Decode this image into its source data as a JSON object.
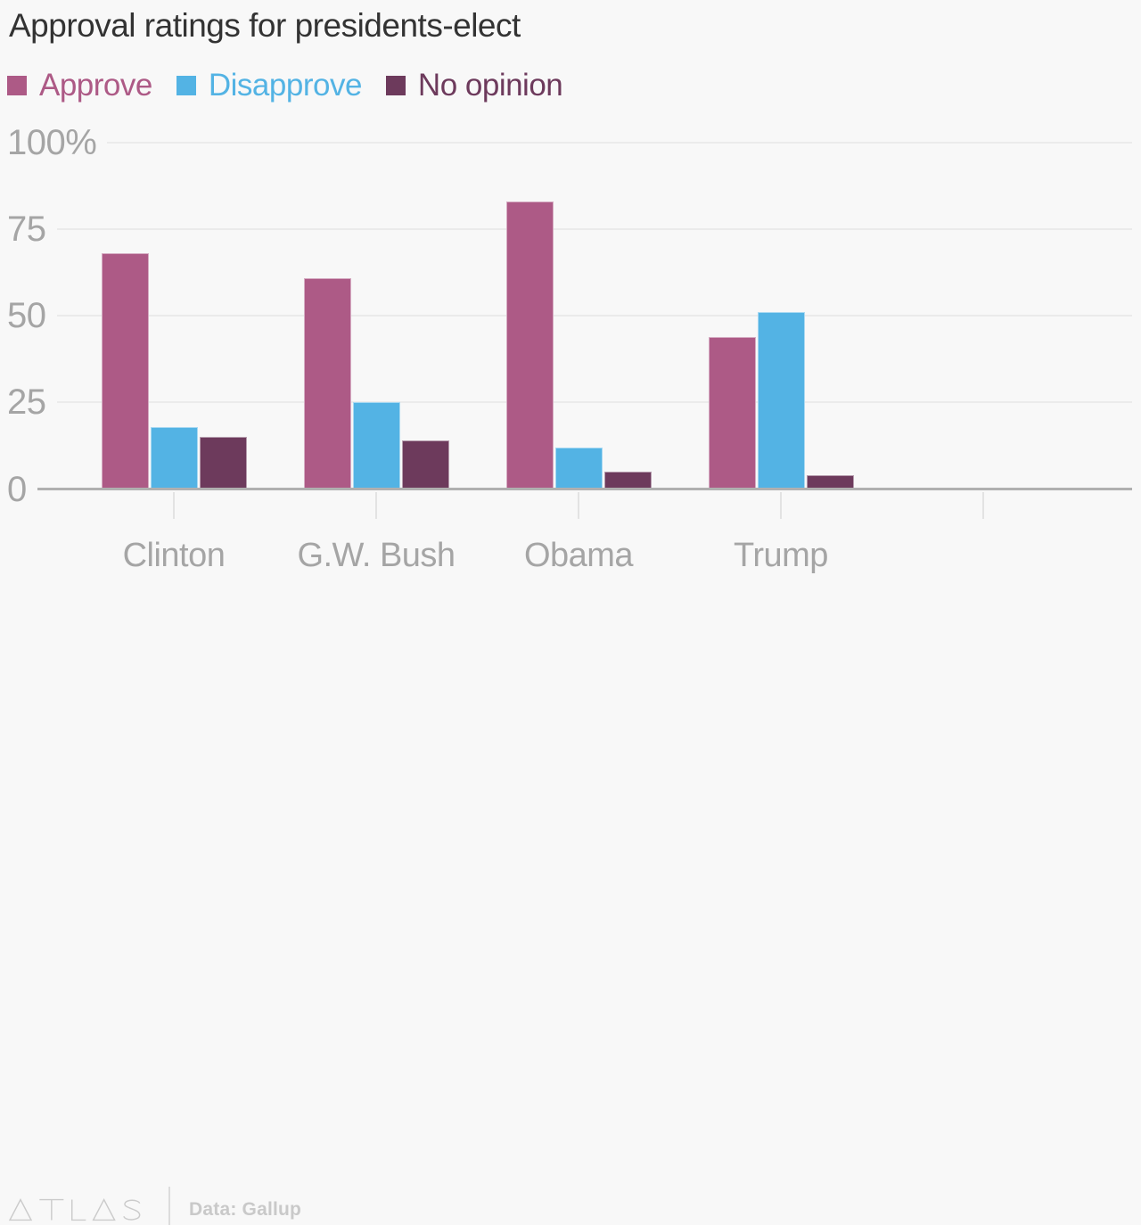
{
  "title": "Approval ratings for presidents-elect",
  "legend": {
    "items": [
      {
        "label": "Approve",
        "color": "#ad5a86"
      },
      {
        "label": "Disapprove",
        "color": "#53b3e4"
      },
      {
        "label": "No opinion",
        "color": "#6d3a5c"
      }
    ]
  },
  "chart_data": {
    "type": "bar",
    "title": "Approval ratings for presidents-elect",
    "categories": [
      "Clinton",
      "G.W. Bush",
      "Obama",
      "Trump"
    ],
    "series": [
      {
        "name": "Approve",
        "color": "#ad5a86",
        "values": [
          68,
          61,
          83,
          44
        ]
      },
      {
        "name": "Disapprove",
        "color": "#53b3e4",
        "values": [
          18,
          25,
          12,
          51
        ]
      },
      {
        "name": "No opinion",
        "color": "#6d3a5c",
        "values": [
          15,
          14,
          5,
          4
        ]
      }
    ],
    "xlabel": "",
    "ylabel": "",
    "ylim": [
      0,
      100
    ],
    "yticks": [
      {
        "value": 100,
        "label": "100%"
      },
      {
        "value": 75,
        "label": "75"
      },
      {
        "value": 50,
        "label": "50"
      },
      {
        "value": 25,
        "label": "25"
      },
      {
        "value": 0,
        "label": "0"
      }
    ],
    "grid": true,
    "legend_position": "top-left",
    "x_tick_slots": 5
  },
  "footer": {
    "logo_text": "ATLAS",
    "source": "Data: Gallup"
  },
  "colors": {
    "background": "#f8f8f8",
    "title_text": "#333333",
    "axis_text": "#a5a5a5",
    "gridline": "#ebebeb",
    "baseline": "#b0b0b0",
    "tick": "#e3e3e3",
    "footer_text": "#c9c9c9"
  }
}
